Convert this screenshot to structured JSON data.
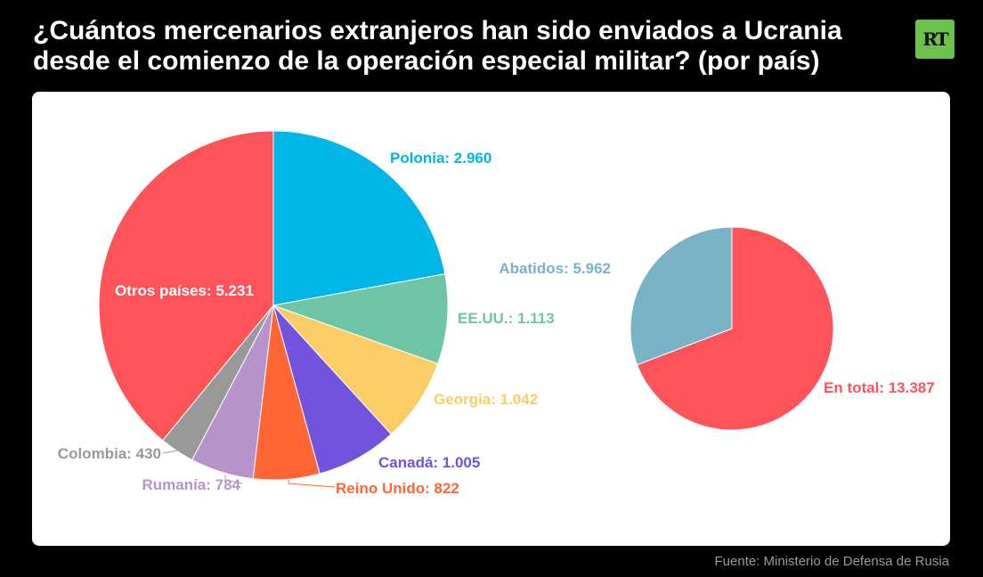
{
  "header": {
    "title_line1": "¿Cuántos mercenarios extranjeros han sido enviados a Ucrania",
    "title_line2": "desde el comienzo de la operación especial militar? (por país)",
    "logo_text": "RT",
    "logo_color": "#6cc24a"
  },
  "footer": {
    "source": "Fuente: Ministerio de Defensa de Rusia"
  },
  "chart_data": [
    {
      "type": "pie",
      "slices": [
        {
          "label": "Polonia",
          "value": 2960,
          "display": "Polonia: 2.960",
          "color": "#00b6e6"
        },
        {
          "label": "EE.UU.",
          "value": 1113,
          "display": "EE.UU.: 1.113",
          "color": "#6ec5a6"
        },
        {
          "label": "Georgia",
          "value": 1042,
          "display": "Georgia: 1.042",
          "color": "#fbcd66"
        },
        {
          "label": "Canadá",
          "value": 1005,
          "display": "Canadá: 1.005",
          "color": "#7253de"
        },
        {
          "label": "Reino Unido",
          "value": 822,
          "display": "Reino Unido: 822",
          "color": "#ff6633"
        },
        {
          "label": "Rumanía",
          "value": 784,
          "display": "Rumanía: 784",
          "color": "#b693c9"
        },
        {
          "label": "Colombia",
          "value": 430,
          "display": "Colombia: 430",
          "color": "#999999"
        },
        {
          "label": "Otros países",
          "value": 5231,
          "display": "Otros países: 5.231",
          "color": "#fd5359"
        }
      ]
    },
    {
      "type": "pie",
      "slices": [
        {
          "label": "En total",
          "value": 13387,
          "display": "En total: 13.387",
          "color": "#fd5359"
        },
        {
          "label": "Abatidos",
          "value": 5962,
          "display": "Abatidos: 5.962",
          "color": "#7ab3c7"
        }
      ]
    }
  ]
}
